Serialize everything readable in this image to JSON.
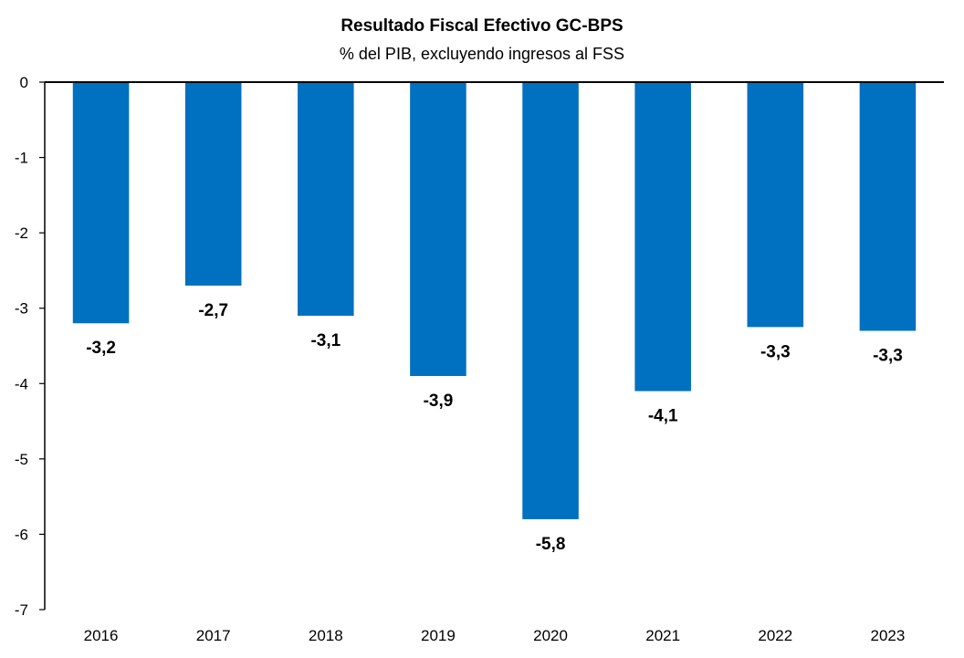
{
  "chart_data": {
    "type": "bar",
    "title": "Resultado Fiscal Efectivo GC-BPS",
    "subtitle": "% del PIB, excluyendo ingresos al FSS",
    "categories": [
      "2016",
      "2017",
      "2018",
      "2019",
      "2020",
      "2021",
      "2022",
      "2023"
    ],
    "values": [
      -3.2,
      -2.7,
      -3.1,
      -3.9,
      -5.8,
      -4.1,
      -3.25,
      -3.3
    ],
    "data_labels": [
      "-3,2",
      "-2,7",
      "-3,1",
      "-3,9",
      "-5,8",
      "-4,1",
      "-3,3",
      "-3,3"
    ],
    "ylim": [
      -7,
      0
    ],
    "yticks": [
      0,
      -1,
      -2,
      -3,
      -4,
      -5,
      -6,
      -7
    ],
    "ytick_labels": [
      "0",
      "-1",
      "-2",
      "-3",
      "-4",
      "-5",
      "-6",
      "-7"
    ],
    "xlabel": "",
    "ylabel": "",
    "grid": false,
    "legend": "none",
    "bar_color": "#0070C0"
  }
}
